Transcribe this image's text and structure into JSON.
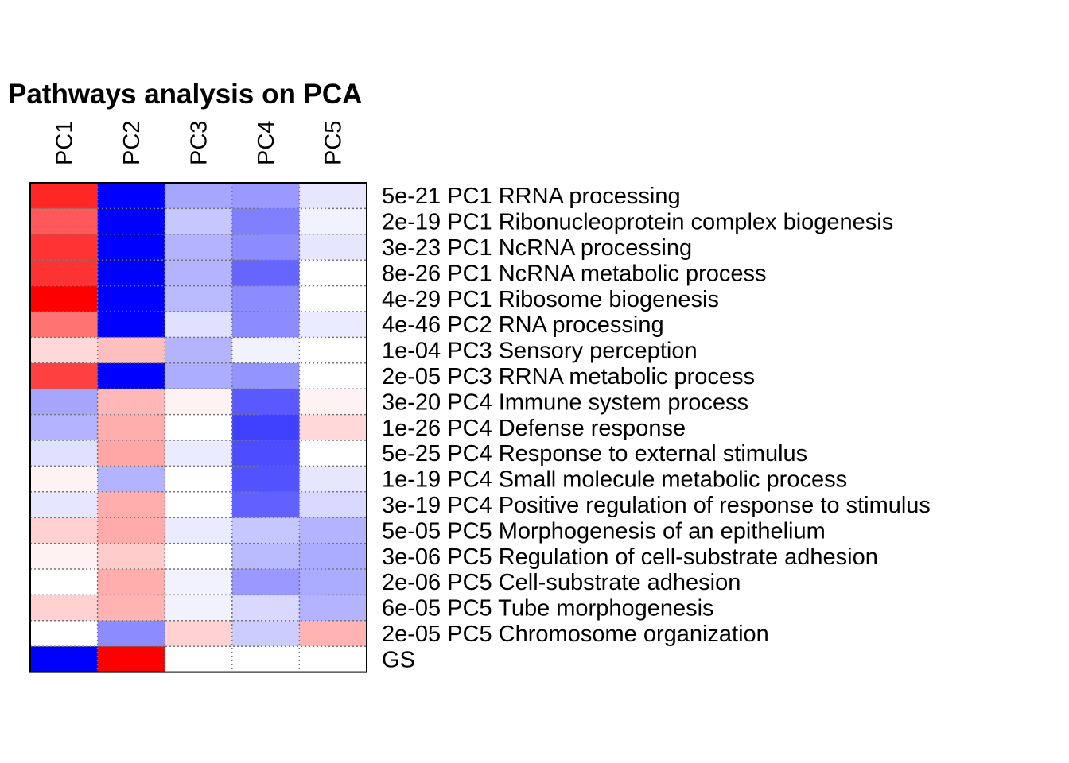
{
  "chart_data": {
    "type": "heatmap",
    "title": "Pathways analysis on PCA",
    "columns": [
      "PC1",
      "PC2",
      "PC3",
      "PC4",
      "PC5"
    ],
    "rows": [
      "5e-21 PC1 RRNA processing",
      "2e-19 PC1 Ribonucleoprotein complex biogenesis",
      "3e-23 PC1 NcRNA processing",
      "8e-26 PC1 NcRNA metabolic process",
      "4e-29 PC1 Ribosome biogenesis",
      "4e-46 PC2 RNA processing",
      "1e-04 PC3 Sensory perception",
      "2e-05 PC3 RRNA metabolic process",
      "3e-20 PC4 Immune system process",
      "1e-26 PC4 Defense response",
      "5e-25 PC4 Response to external stimulus",
      "1e-19 PC4 Small molecule metabolic process",
      "3e-19 PC4 Positive regulation of response to stimulus",
      "5e-05 PC5 Morphogenesis of an epithelium",
      "3e-06 PC5 Regulation of cell-substrate adhesion",
      "2e-06 PC5 Cell-substrate adhesion",
      "6e-05 PC5 Tube morphogenesis",
      "2e-05 PC5 Chromosome organization",
      "GS"
    ],
    "values": [
      [
        0.85,
        -1.0,
        -0.35,
        -0.4,
        -0.1
      ],
      [
        0.65,
        -1.0,
        -0.22,
        -0.5,
        -0.05
      ],
      [
        0.8,
        -1.0,
        -0.3,
        -0.45,
        -0.1
      ],
      [
        0.8,
        -1.0,
        -0.3,
        -0.6,
        0.0
      ],
      [
        1.0,
        -1.0,
        -0.27,
        -0.45,
        0.0
      ],
      [
        0.55,
        -1.0,
        -0.12,
        -0.45,
        -0.08
      ],
      [
        0.15,
        0.25,
        -0.3,
        -0.05,
        0.0
      ],
      [
        0.75,
        -1.0,
        -0.32,
        -0.42,
        0.0
      ],
      [
        -0.35,
        0.28,
        0.05,
        -0.65,
        0.05
      ],
      [
        -0.3,
        0.32,
        0.0,
        -0.75,
        0.15
      ],
      [
        -0.12,
        0.35,
        -0.08,
        -0.7,
        0.0
      ],
      [
        0.05,
        -0.3,
        0.0,
        -0.68,
        -0.1
      ],
      [
        -0.1,
        0.32,
        0.0,
        -0.62,
        -0.15
      ],
      [
        0.18,
        0.33,
        -0.08,
        -0.22,
        -0.3
      ],
      [
        0.05,
        0.2,
        0.0,
        -0.27,
        -0.33
      ],
      [
        0.0,
        0.32,
        -0.05,
        -0.4,
        -0.33
      ],
      [
        0.18,
        0.3,
        -0.05,
        -0.15,
        -0.3
      ],
      [
        0.0,
        -0.45,
        0.18,
        -0.2,
        0.3
      ],
      [
        -1.0,
        1.0,
        0.0,
        0.0,
        0.0
      ]
    ],
    "color_scale": {
      "low": "#0000ff",
      "mid": "#ffffff",
      "high": "#ff0000"
    },
    "grid": "dotted"
  }
}
